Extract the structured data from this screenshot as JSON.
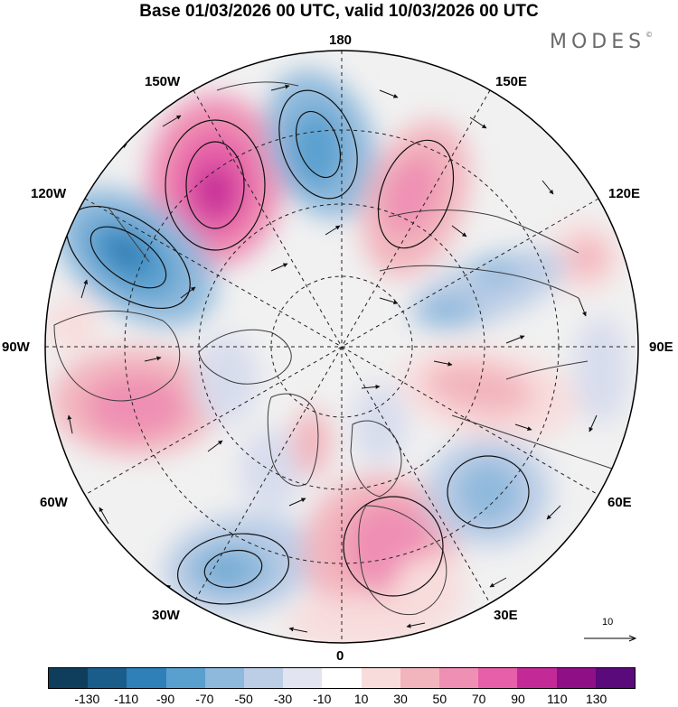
{
  "title": "Base 01/03/2026 00 UTC, valid 10/03/2026 00 UTC",
  "brand": {
    "name": "MODES",
    "mark": "©"
  },
  "map": {
    "projection": "north-polar-stereographic",
    "labels": {
      "top": "180",
      "bottom": "0",
      "left": "90W",
      "right": "90E",
      "upper_left_far": "150W",
      "upper_left_near": "120W",
      "upper_right_far": "150E",
      "upper_right_near": "120E",
      "lower_left_near": "60W",
      "lower_left_far": "30W",
      "lower_right_near": "60E",
      "lower_right_far": "30E"
    },
    "anomaly_centers": [
      {
        "name": "gulf-of-alaska-positive",
        "sign": "positive",
        "lon": "150W"
      },
      {
        "name": "aleutian-negative",
        "sign": "negative",
        "lon": "180"
      },
      {
        "name": "west-canada-negative",
        "sign": "negative",
        "lon": "120W"
      },
      {
        "name": "east-siberia-positive",
        "sign": "positive",
        "lon": "150E"
      },
      {
        "name": "siberia-negative",
        "sign": "negative",
        "lon": "90E"
      },
      {
        "name": "europe-positive",
        "sign": "positive",
        "lon": "0"
      },
      {
        "name": "north-atlantic-negative",
        "sign": "negative",
        "lon": "30W"
      },
      {
        "name": "west-siberia-negative",
        "sign": "negative",
        "lon": "60E"
      },
      {
        "name": "hudson-positive",
        "sign": "positive",
        "lon": "90W"
      }
    ]
  },
  "reference_vector": {
    "value": "10"
  },
  "colorbar": {
    "colors": [
      "#0f3d5c",
      "#1a5c8a",
      "#2f7fb8",
      "#5aa0cf",
      "#8fb9dc",
      "#bccde6",
      "#e3e4f1",
      "#ffffff",
      "#f8dcdc",
      "#f2b5bd",
      "#ef8fb3",
      "#e65fa8",
      "#c42a97",
      "#8e0f86",
      "#5a0a7a"
    ],
    "ticks": [
      "-130",
      "-110",
      "-90",
      "-70",
      "-50",
      "-30",
      "-10",
      "10",
      "30",
      "50",
      "70",
      "90",
      "110",
      "130"
    ]
  }
}
